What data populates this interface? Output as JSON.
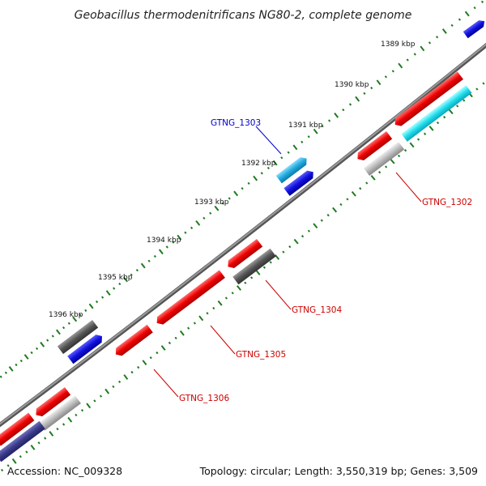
{
  "header": {
    "title": "Geobacillus thermodenitrificans NG80-2, complete genome"
  },
  "ticks": [
    {
      "label": "1389 kbp"
    },
    {
      "label": "1390 kbp"
    },
    {
      "label": "1391 kbp"
    },
    {
      "label": "1392 kbp"
    },
    {
      "label": "1393 kbp"
    },
    {
      "label": "1394 kbp"
    },
    {
      "label": "1395 kbp"
    },
    {
      "label": "1396 kbp"
    }
  ],
  "gene_labels": [
    {
      "name": "GTNG_1303",
      "color": "#0000cc"
    },
    {
      "name": "GTNG_1302",
      "color": "#cc0000"
    },
    {
      "name": "GTNG_1304",
      "color": "#cc0000"
    },
    {
      "name": "GTNG_1305",
      "color": "#cc0000"
    },
    {
      "name": "GTNG_1306",
      "color": "#cc0000"
    }
  ],
  "footer": {
    "accession": "Accession: NC_009328",
    "summary": "Topology: circular; Length: 3,550,319 bp; Genes: 3,509"
  },
  "colors": {
    "backbone": "#777777",
    "tick": "#1f7a1f",
    "red": "#ee0000",
    "blue": "#1111dd",
    "cyan": "#22ddee",
    "sky": "#22aadd",
    "dark_gray": "#555555",
    "light_gray": "#bbbbbb",
    "navy": "#3a3a8a"
  }
}
